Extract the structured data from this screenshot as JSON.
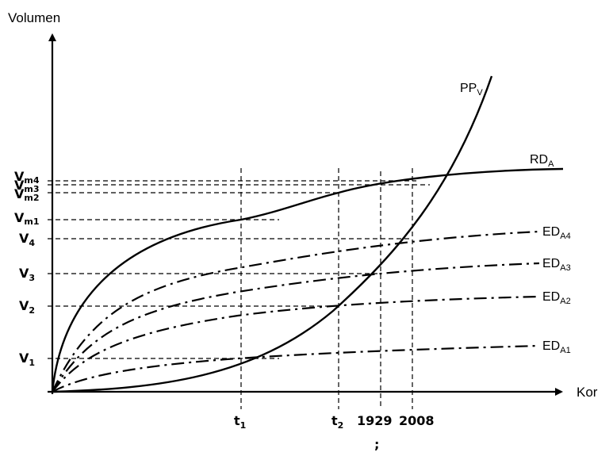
{
  "axes": {
    "y_label": "Volumen",
    "x_label": "Kor"
  },
  "x_marks": [
    {
      "main": "t",
      "sub": "1"
    },
    {
      "main": "t",
      "sub": "2"
    },
    {
      "main": "1929",
      "sub": ""
    },
    {
      "main": "2008",
      "sub": ""
    }
  ],
  "y_marks": [
    {
      "main": "V",
      "sub": "m4"
    },
    {
      "main": "V",
      "sub": "m3"
    },
    {
      "main": "V",
      "sub": "m2"
    },
    {
      "main": "V",
      "sub": "m1"
    },
    {
      "main": "V",
      "sub": "4"
    },
    {
      "main": "V",
      "sub": "3"
    },
    {
      "main": "V",
      "sub": "2"
    },
    {
      "main": "V",
      "sub": "1"
    }
  ],
  "curves": [
    {
      "main": "PP",
      "sub": "V",
      "style": "solid"
    },
    {
      "main": "RD",
      "sub": "A",
      "style": "solid"
    },
    {
      "main": "ED",
      "sub": "A4",
      "style": "dash-dot"
    },
    {
      "main": "ED",
      "sub": "A3",
      "style": "dash-dot"
    },
    {
      "main": "ED",
      "sub": "A2",
      "style": "dash-dot"
    },
    {
      "main": "ED",
      "sub": "A1",
      "style": "dash-dot"
    }
  ],
  "footer_mark": ";"
}
